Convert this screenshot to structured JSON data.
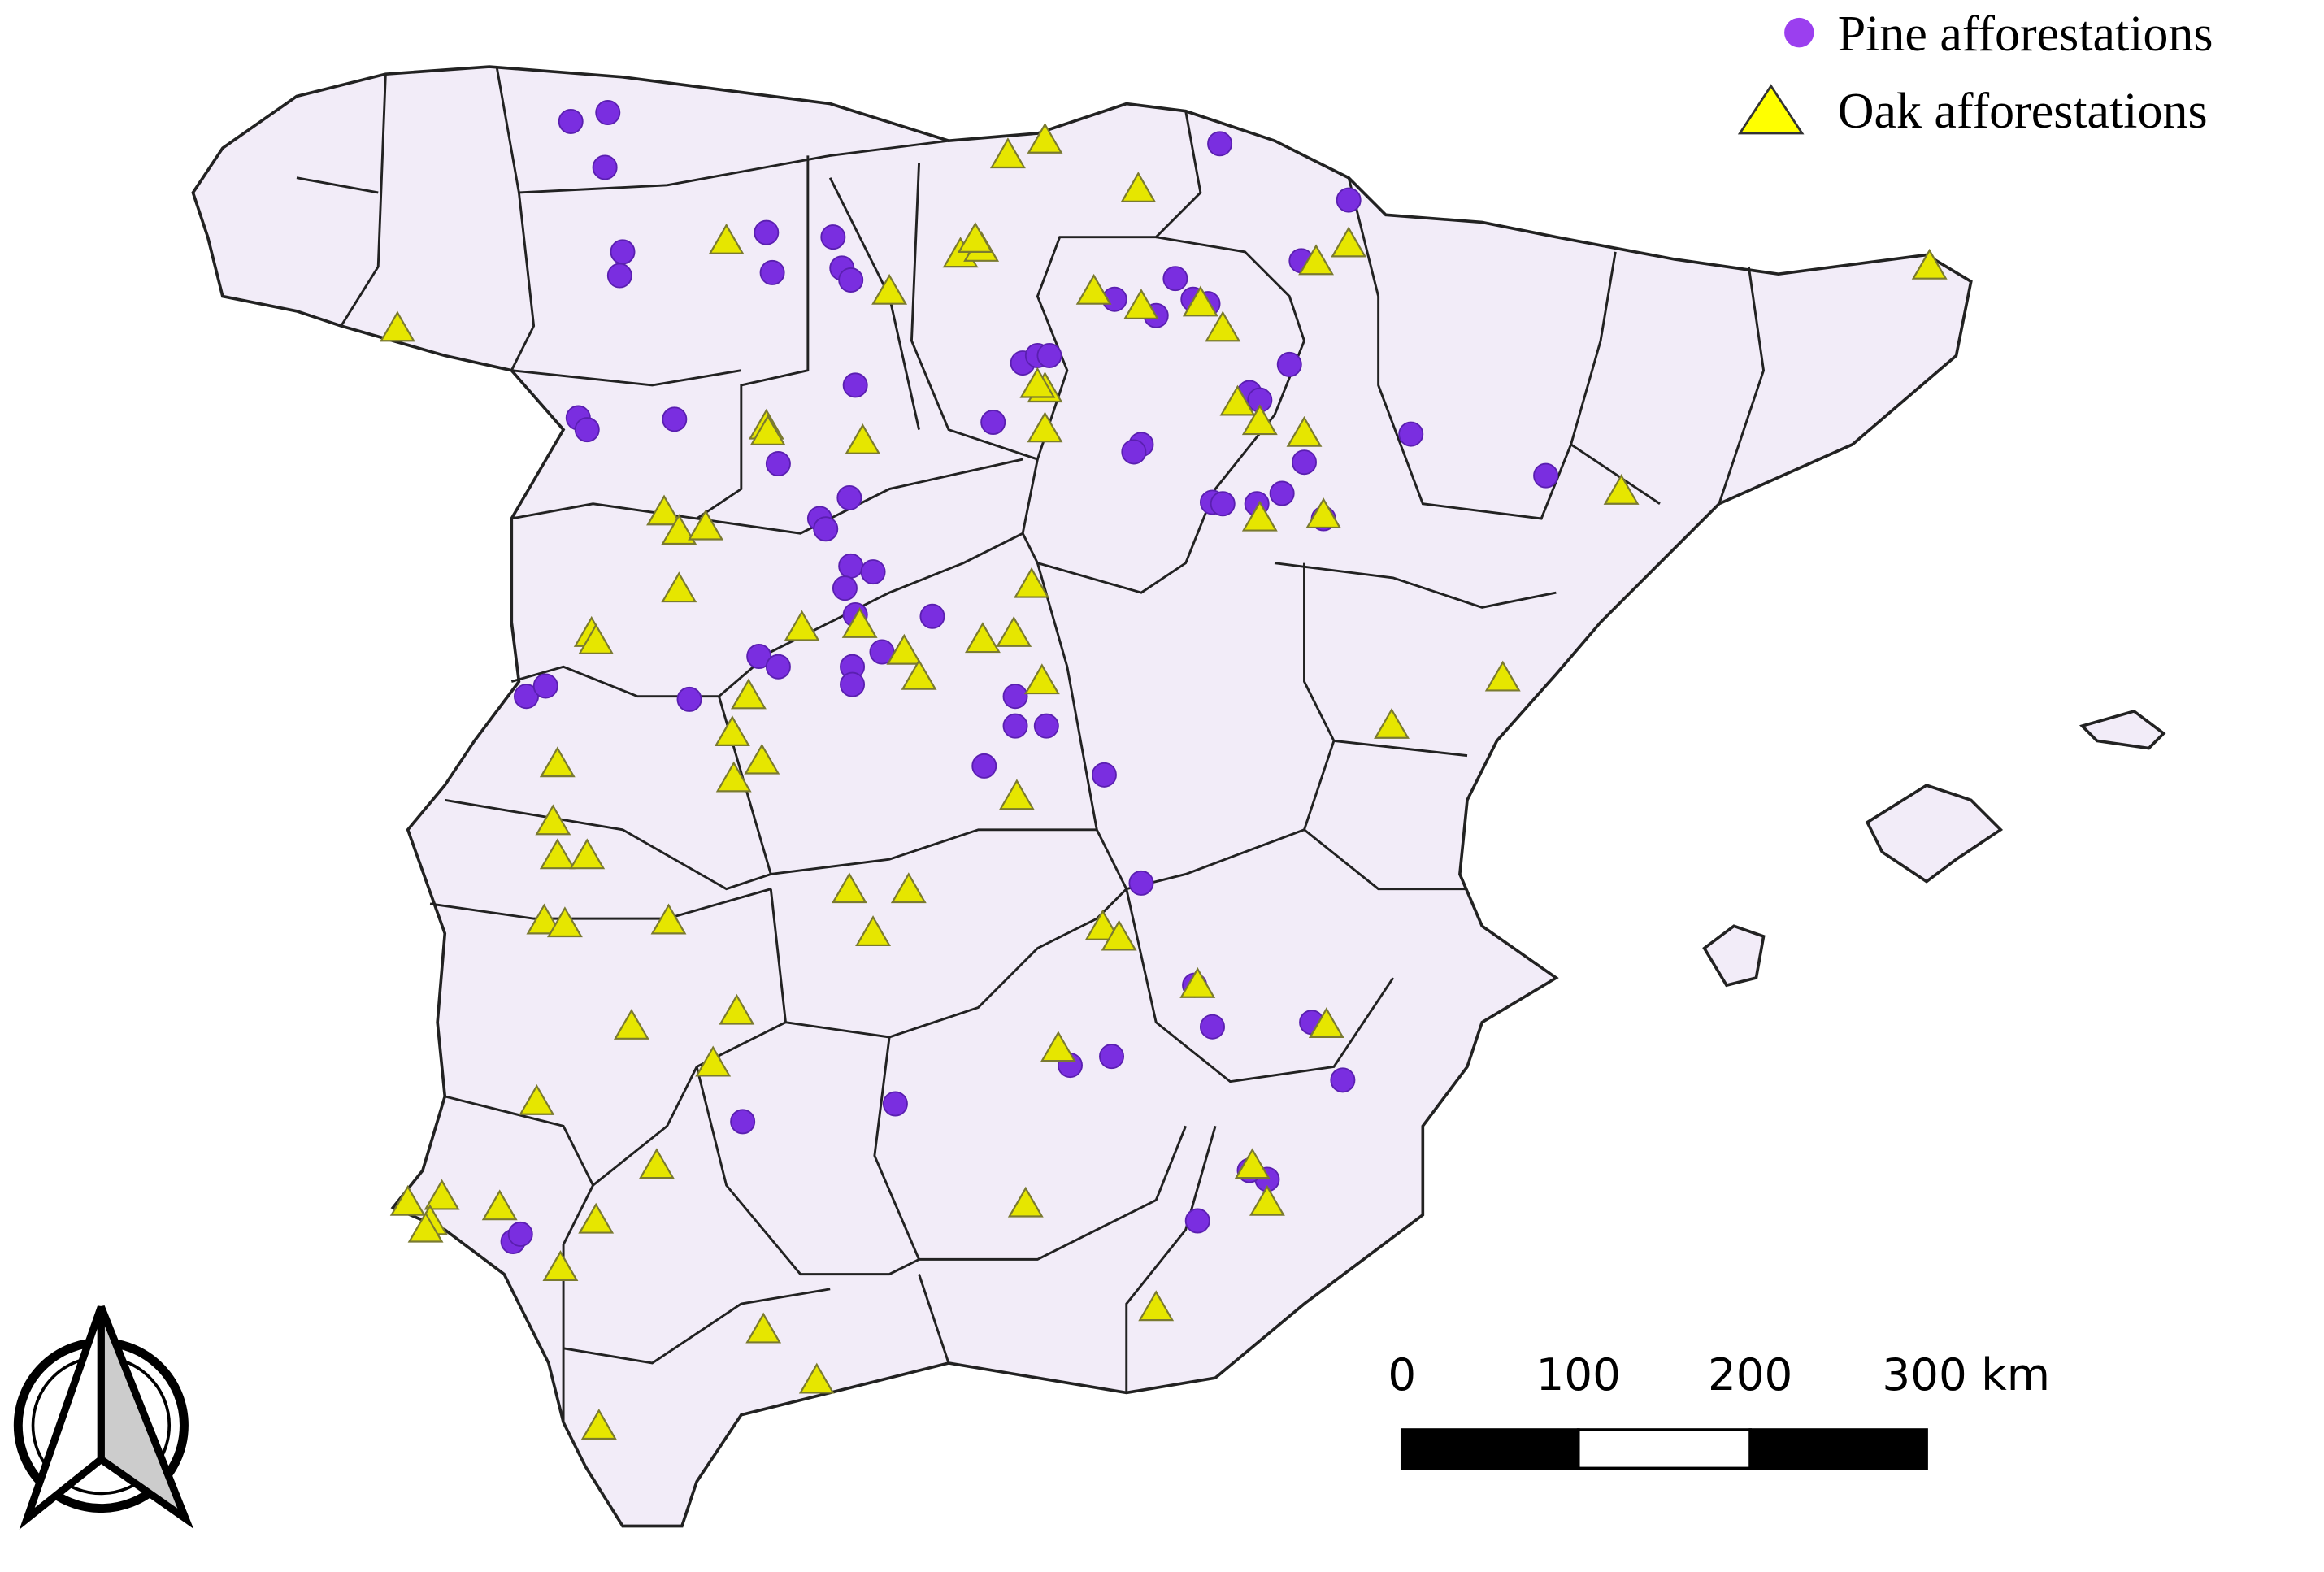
{
  "legend": {
    "items": [
      {
        "label": "Pine afforestations"
      },
      {
        "label": "Oak afforestations"
      }
    ]
  },
  "scale_bar": {
    "labels": [
      "0",
      "100",
      "200",
      "300 km"
    ]
  }
}
